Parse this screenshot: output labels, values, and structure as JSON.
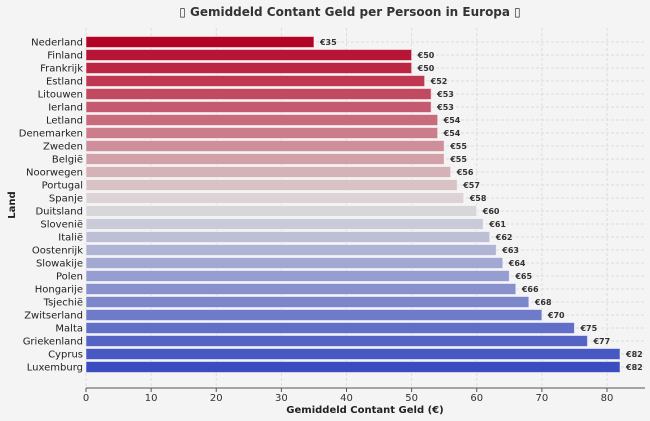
{
  "chart_data": {
    "type": "bar",
    "orientation": "horizontal",
    "title": "▯ Gemiddeld Contant Geld per Persoon in Europa ▯",
    "xlabel": "Gemiddeld Contant Geld (€)",
    "ylabel": "Land",
    "xlim": [
      0,
      86
    ],
    "xticks": [
      0,
      10,
      20,
      30,
      40,
      50,
      60,
      70,
      80
    ],
    "grid": true,
    "colormap": "coolwarm (reversed: red to blue)",
    "colors": {
      "start": "#b40426",
      "mid": "#dddcdc",
      "end": "#3b4cc0"
    },
    "categories": [
      "Nederland",
      "Finland",
      "Frankrijk",
      "Estland",
      "Litouwen",
      "Ierland",
      "Letland",
      "Denemarken",
      "Zweden",
      "België",
      "Noorwegen",
      "Portugal",
      "Spanje",
      "Duitsland",
      "Slovenië",
      "Italië",
      "Oostenrijk",
      "Slowakije",
      "Polen",
      "Hongarije",
      "Tsjechië",
      "Zwitserland",
      "Malta",
      "Griekenland",
      "Cyprus",
      "Luxemburg"
    ],
    "values": [
      35,
      50,
      50,
      52,
      53,
      53,
      54,
      54,
      55,
      55,
      56,
      57,
      58,
      60,
      61,
      62,
      63,
      64,
      65,
      66,
      68,
      70,
      75,
      77,
      82,
      82
    ],
    "data_labels": [
      "€35",
      "€50",
      "€50",
      "€52",
      "€53",
      "€53",
      "€54",
      "€54",
      "€55",
      "€55",
      "€56",
      "€57",
      "€58",
      "€60",
      "€61",
      "€62",
      "€63",
      "€64",
      "€65",
      "€66",
      "€68",
      "€70",
      "€75",
      "€77",
      "€82",
      "€82"
    ]
  }
}
